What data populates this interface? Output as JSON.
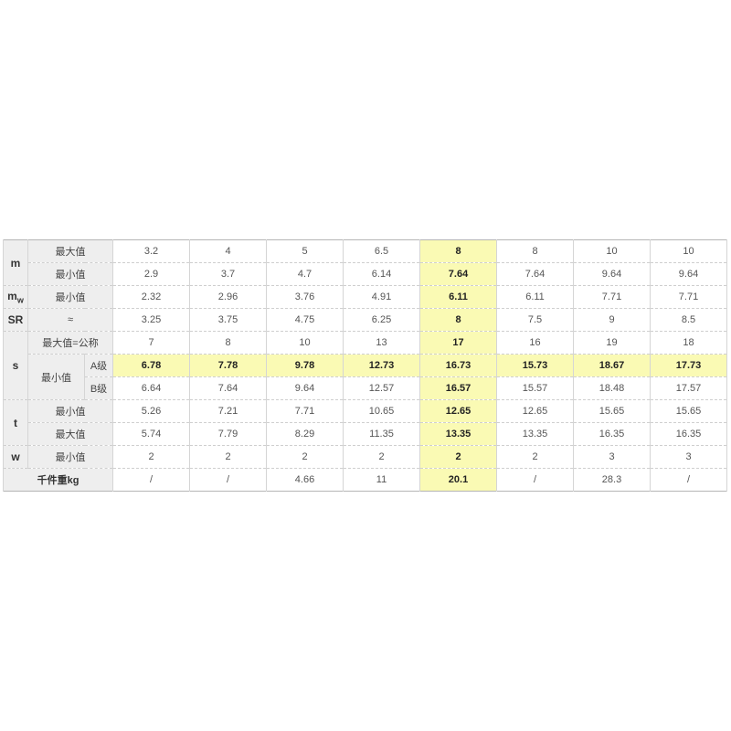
{
  "table": {
    "highlight_column": 4,
    "colors": {
      "highlight_bg": "#fafab4",
      "header_bg": "#eeeeee",
      "outer_border": "#b5b5b5",
      "inner_border": "#d5d5d5",
      "value_text": "#555555",
      "highlight_text": "#222222"
    },
    "rows": [
      {
        "labels": [
          {
            "text": "m",
            "kind": "group",
            "rowspan": 2,
            "name": "row-group-m"
          },
          {
            "text": "最大值",
            "kind": "sub",
            "colspan": 2,
            "name": "row-sub-max"
          }
        ],
        "values": [
          "3.2",
          "4",
          "5",
          "6.5",
          "8",
          "8",
          "10",
          "10"
        ]
      },
      {
        "labels": [
          {
            "text": "最小值",
            "kind": "sub",
            "colspan": 2,
            "name": "row-sub-min"
          }
        ],
        "values": [
          "2.9",
          "3.7",
          "4.7",
          "6.14",
          "7.64",
          "7.64",
          "9.64",
          "9.64"
        ]
      },
      {
        "labels": [
          {
            "text": "m",
            "sub": "w",
            "kind": "group",
            "name": "row-group-mw"
          },
          {
            "text": "最小值",
            "kind": "sub",
            "colspan": 2,
            "name": "row-sub-min"
          }
        ],
        "values": [
          "2.32",
          "2.96",
          "3.76",
          "4.91",
          "6.11",
          "6.11",
          "7.71",
          "7.71"
        ]
      },
      {
        "labels": [
          {
            "text": "SR",
            "kind": "group",
            "name": "row-group-sr"
          },
          {
            "text": "≈",
            "kind": "sub",
            "colspan": 2,
            "name": "row-sub-approx"
          }
        ],
        "values": [
          "3.25",
          "3.75",
          "4.75",
          "6.25",
          "8",
          "7.5",
          "9",
          "8.5"
        ]
      },
      {
        "labels": [
          {
            "text": "s",
            "kind": "group",
            "rowspan": 3,
            "name": "row-group-s"
          },
          {
            "text": "最大值=公称",
            "kind": "sub",
            "colspan": 2,
            "name": "row-sub-max-nominal"
          }
        ],
        "values": [
          "7",
          "8",
          "10",
          "13",
          "17",
          "16",
          "19",
          "18"
        ]
      },
      {
        "labels": [
          {
            "text": "最小值",
            "kind": "sub",
            "rowspan": 2,
            "name": "row-sub-min"
          },
          {
            "text": "A级",
            "kind": "grade",
            "name": "grade-a-label"
          }
        ],
        "values": [
          "6.78",
          "7.78",
          "9.78",
          "12.73",
          "16.73",
          "15.73",
          "18.67",
          "17.73"
        ],
        "highlight_row": true
      },
      {
        "labels": [
          {
            "text": "B级",
            "kind": "grade",
            "name": "grade-b-label"
          }
        ],
        "values": [
          "6.64",
          "7.64",
          "9.64",
          "12.57",
          "16.57",
          "15.57",
          "18.48",
          "17.57"
        ]
      },
      {
        "labels": [
          {
            "text": "t",
            "kind": "group",
            "rowspan": 2,
            "name": "row-group-t"
          },
          {
            "text": "最小值",
            "kind": "sub",
            "colspan": 2,
            "name": "row-sub-min"
          }
        ],
        "values": [
          "5.26",
          "7.21",
          "7.71",
          "10.65",
          "12.65",
          "12.65",
          "15.65",
          "15.65"
        ]
      },
      {
        "labels": [
          {
            "text": "最大值",
            "kind": "sub",
            "colspan": 2,
            "name": "row-sub-max"
          }
        ],
        "values": [
          "5.74",
          "7.79",
          "8.29",
          "11.35",
          "13.35",
          "13.35",
          "16.35",
          "16.35"
        ]
      },
      {
        "labels": [
          {
            "text": "w",
            "kind": "group",
            "name": "row-group-w"
          },
          {
            "text": "最小值",
            "kind": "sub",
            "colspan": 2,
            "name": "row-sub-min"
          }
        ],
        "values": [
          "2",
          "2",
          "2",
          "2",
          "2",
          "2",
          "3",
          "3"
        ]
      },
      {
        "labels": [
          {
            "text": "千件重kg",
            "kind": "unitrow",
            "colspan": 3,
            "name": "unit-weight-label"
          }
        ],
        "values": [
          "/",
          "/",
          "4.66",
          "11",
          "20.1",
          "/",
          "28.3",
          "/"
        ]
      }
    ]
  }
}
